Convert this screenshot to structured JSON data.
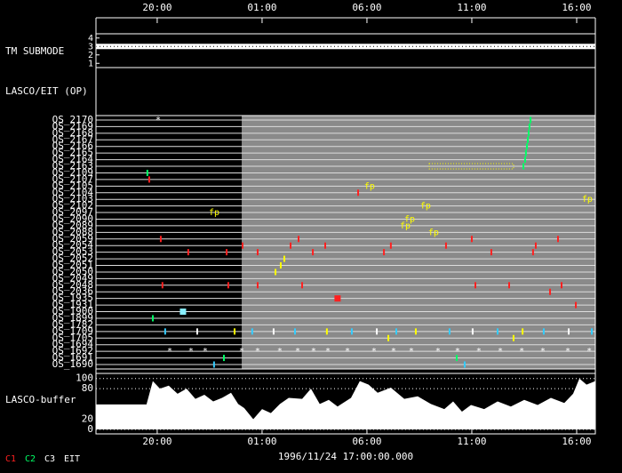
{
  "chart_data": {
    "type": "timeline",
    "date": "1996/11/24 17:00:00.000",
    "xlim": [
      17.08,
      40.89
    ],
    "xticks": [
      {
        "value": 20,
        "label": "20:00"
      },
      {
        "value": 25,
        "label": "01:00"
      },
      {
        "value": 30,
        "label": "06:00"
      },
      {
        "value": 35,
        "label": "11:00"
      },
      {
        "value": 40,
        "label": "16:00"
      }
    ],
    "shaded_from": 24.03,
    "tm": {
      "label": "TM SUBMODE",
      "ylim": [
        0.5,
        4.5
      ],
      "yticks": [
        4,
        3,
        2,
        1
      ],
      "value": 3
    },
    "plan_label": "LASCO/EIT (OP)",
    "rows": [
      {
        "label": "OS_2170",
        "events": [
          {
            "t": 19.92,
            "color": "#ffffff",
            "symbol": "*"
          },
          {
            "t": 37.8,
            "color": "#00ff66"
          }
        ]
      },
      {
        "label": "OS_2169",
        "events": [
          {
            "t": 37.75,
            "color": "#00ff66"
          }
        ]
      },
      {
        "label": "OS_2168",
        "events": [
          {
            "t": 37.71,
            "color": "#00ff66"
          }
        ]
      },
      {
        "label": "OS_2167",
        "events": [
          {
            "t": 37.67,
            "color": "#00ff66"
          }
        ]
      },
      {
        "label": "OS_2166",
        "events": [
          {
            "t": 37.63,
            "color": "#00ff66"
          }
        ]
      },
      {
        "label": "OS_2165",
        "events": [
          {
            "t": 37.58,
            "color": "#00ff66"
          }
        ]
      },
      {
        "label": "OS_2164",
        "events": [
          {
            "t": 37.54,
            "color": "#00ff66"
          }
        ]
      },
      {
        "label": "OS_2163",
        "events": [
          {
            "t": 37.46,
            "color": "#00ff66"
          }
        ],
        "ranges": [
          {
            "from": 32.97,
            "to": 36.99,
            "color": "#ffff00"
          }
        ]
      },
      {
        "label": "OS_2109",
        "events": [
          {
            "t": 19.53,
            "color": "#00ff66"
          }
        ]
      },
      {
        "label": "OS_2107",
        "events": [
          {
            "t": 19.62,
            "color": "#ff2020"
          }
        ]
      },
      {
        "label": "OS_2105",
        "events": [
          {
            "t": 29.87,
            "color": "#ffff00",
            "symbol": "fp"
          }
        ]
      },
      {
        "label": "OS_2104",
        "events": [
          {
            "t": 29.58,
            "color": "#ff2020"
          }
        ]
      },
      {
        "label": "OS_2103",
        "events": [
          {
            "t": 40.25,
            "color": "#ffff00",
            "symbol": "fp"
          }
        ]
      },
      {
        "label": "OS_2102",
        "events": [
          {
            "t": 32.54,
            "color": "#ffff00",
            "symbol": "fp"
          }
        ]
      },
      {
        "label": "OS_2097",
        "events": [
          {
            "t": 22.46,
            "color": "#ffff00",
            "symbol": "fp"
          }
        ]
      },
      {
        "label": "OS_2090",
        "events": [
          {
            "t": 31.78,
            "color": "#ffff00",
            "symbol": "fp"
          }
        ]
      },
      {
        "label": "OS_2089",
        "events": [
          {
            "t": 31.57,
            "color": "#ffff00",
            "symbol": "fp"
          }
        ]
      },
      {
        "label": "OS_2088",
        "events": [
          {
            "t": 32.92,
            "color": "#ffff00",
            "symbol": "fp"
          }
        ]
      },
      {
        "label": "OS_2059",
        "events": [
          {
            "t": 20.17,
            "color": "#ff2020"
          },
          {
            "t": 26.74,
            "color": "#ff2020"
          },
          {
            "t": 35.0,
            "color": "#ff2020"
          },
          {
            "t": 39.11,
            "color": "#ff2020"
          }
        ]
      },
      {
        "label": "OS_2054",
        "events": [
          {
            "t": 24.07,
            "color": "#ff2020"
          },
          {
            "t": 26.36,
            "color": "#ff2020"
          },
          {
            "t": 28.01,
            "color": "#ff2020"
          },
          {
            "t": 31.14,
            "color": "#ff2020"
          },
          {
            "t": 33.77,
            "color": "#ff2020"
          },
          {
            "t": 38.05,
            "color": "#ff2020"
          }
        ]
      },
      {
        "label": "OS_2053",
        "events": [
          {
            "t": 21.48,
            "color": "#ff2020"
          },
          {
            "t": 23.31,
            "color": "#ff2020"
          },
          {
            "t": 24.79,
            "color": "#ff2020"
          },
          {
            "t": 27.42,
            "color": "#ff2020"
          },
          {
            "t": 30.81,
            "color": "#ff2020"
          },
          {
            "t": 35.93,
            "color": "#ff2020"
          },
          {
            "t": 37.92,
            "color": "#ff2020"
          }
        ]
      },
      {
        "label": "OS_2052",
        "events": [
          {
            "t": 26.06,
            "color": "#ffff00"
          }
        ]
      },
      {
        "label": "OS_2051",
        "events": [
          {
            "t": 25.89,
            "color": "#ffff00"
          }
        ]
      },
      {
        "label": "OS_2050",
        "events": [
          {
            "t": 25.64,
            "color": "#ffff00"
          }
        ]
      },
      {
        "label": "OS_2049",
        "events": []
      },
      {
        "label": "OS_2048",
        "events": [
          {
            "t": 20.25,
            "color": "#ff2020"
          },
          {
            "t": 23.39,
            "color": "#ff2020"
          },
          {
            "t": 24.79,
            "color": "#ff2020"
          },
          {
            "t": 26.91,
            "color": "#ff2020"
          },
          {
            "t": 35.17,
            "color": "#ff2020"
          },
          {
            "t": 36.78,
            "color": "#ff2020"
          },
          {
            "t": 39.28,
            "color": "#ff2020"
          }
        ]
      },
      {
        "label": "OS_2036",
        "events": [
          {
            "t": 38.73,
            "color": "#ff2020"
          }
        ]
      },
      {
        "label": "OS_1935",
        "events": [
          {
            "t": 28.6,
            "color": "#ff2020",
            "shape": "square"
          }
        ]
      },
      {
        "label": "OS_1931",
        "events": [
          {
            "t": 39.96,
            "color": "#ff2020"
          }
        ]
      },
      {
        "label": "OS_1900",
        "events": [
          {
            "t": 21.23,
            "color": "#88eeff",
            "shape": "square"
          }
        ]
      },
      {
        "label": "OS_1899",
        "events": [
          {
            "t": 19.79,
            "color": "#00ff66"
          }
        ]
      },
      {
        "label": "OS_1782",
        "events": []
      },
      {
        "label": "OS_1709",
        "events": [
          {
            "t": 20.38,
            "color": "#33ccff"
          },
          {
            "t": 21.91,
            "color": "#ffffff"
          },
          {
            "t": 23.69,
            "color": "#ffff00"
          },
          {
            "t": 24.53,
            "color": "#33ccff"
          },
          {
            "t": 25.55,
            "color": "#ffffff"
          },
          {
            "t": 26.57,
            "color": "#33ccff"
          },
          {
            "t": 28.09,
            "color": "#ffff00"
          },
          {
            "t": 29.28,
            "color": "#33ccff"
          },
          {
            "t": 30.47,
            "color": "#ffffff"
          },
          {
            "t": 31.4,
            "color": "#33ccff"
          },
          {
            "t": 32.33,
            "color": "#ffff00"
          },
          {
            "t": 33.94,
            "color": "#33ccff"
          },
          {
            "t": 35.04,
            "color": "#ffffff"
          },
          {
            "t": 36.23,
            "color": "#33ccff"
          },
          {
            "t": 37.42,
            "color": "#ffff00"
          },
          {
            "t": 38.43,
            "color": "#33ccff"
          },
          {
            "t": 39.62,
            "color": "#ffffff"
          },
          {
            "t": 40.72,
            "color": "#33ccff"
          }
        ]
      },
      {
        "label": "OS_1705",
        "events": [
          {
            "t": 31.02,
            "color": "#ffff00"
          },
          {
            "t": 36.99,
            "color": "#ffff00"
          }
        ]
      },
      {
        "label": "OS_1694",
        "events": []
      },
      {
        "label": "OS_1692",
        "events": [
          {
            "t": 20.47,
            "color": "#ffffff",
            "symbol": "*"
          },
          {
            "t": 21.48,
            "color": "#ffffff",
            "symbol": "*"
          },
          {
            "t": 22.16,
            "color": "#ffffff",
            "symbol": "*"
          },
          {
            "t": 23.9,
            "color": "#ffffff",
            "symbol": "*"
          },
          {
            "t": 24.66,
            "color": "#ffffff",
            "symbol": "*"
          },
          {
            "t": 25.72,
            "color": "#ffffff",
            "symbol": "*"
          },
          {
            "t": 26.57,
            "color": "#ffffff",
            "symbol": "*"
          },
          {
            "t": 27.33,
            "color": "#ffffff",
            "symbol": "*"
          },
          {
            "t": 28.01,
            "color": "#ffffff",
            "symbol": "*"
          },
          {
            "t": 28.94,
            "color": "#ffffff",
            "symbol": "*"
          },
          {
            "t": 30.21,
            "color": "#ffffff",
            "symbol": "*"
          },
          {
            "t": 31.14,
            "color": "#ffffff",
            "symbol": "*"
          },
          {
            "t": 31.99,
            "color": "#ffffff",
            "symbol": "*"
          },
          {
            "t": 33.26,
            "color": "#ffffff",
            "symbol": "*"
          },
          {
            "t": 34.19,
            "color": "#ffffff",
            "symbol": "*"
          },
          {
            "t": 35.21,
            "color": "#ffffff",
            "symbol": "*"
          },
          {
            "t": 36.23,
            "color": "#ffffff",
            "symbol": "*"
          },
          {
            "t": 37.25,
            "color": "#ffffff",
            "symbol": "*"
          },
          {
            "t": 38.26,
            "color": "#ffffff",
            "symbol": "*"
          },
          {
            "t": 39.45,
            "color": "#ffffff",
            "symbol": "*"
          },
          {
            "t": 40.47,
            "color": "#ffffff",
            "symbol": "*"
          }
        ]
      },
      {
        "label": "OS_1691",
        "events": [
          {
            "t": 23.18,
            "color": "#00ff66"
          },
          {
            "t": 34.28,
            "color": "#00ff66"
          }
        ]
      },
      {
        "label": "OS_1690",
        "events": [
          {
            "t": 22.71,
            "color": "#33ccff"
          },
          {
            "t": 34.66,
            "color": "#33ccff"
          }
        ]
      }
    ],
    "buffer": {
      "label": "LASCO-buffer",
      "ylim": [
        0,
        110
      ],
      "yticks": [
        100,
        80,
        20,
        0
      ],
      "x": [
        17.08,
        18.86,
        19.49,
        19.79,
        20.13,
        20.55,
        20.97,
        21.4,
        21.82,
        22.25,
        22.67,
        23.09,
        23.52,
        23.86,
        24.15,
        24.58,
        25,
        25.42,
        25.85,
        26.27,
        26.91,
        27.33,
        27.75,
        28.18,
        28.6,
        29.24,
        29.66,
        30.08,
        30.51,
        31.14,
        31.78,
        32.42,
        33.05,
        33.69,
        34.11,
        34.53,
        34.96,
        35.59,
        36.23,
        36.86,
        37.5,
        38.14,
        38.77,
        39.41,
        39.83,
        40.13,
        40.47,
        40.89
      ],
      "values": [
        49,
        49,
        49,
        95,
        80,
        86,
        70,
        80,
        60,
        68,
        55,
        62,
        72,
        50,
        42,
        20,
        40,
        32,
        50,
        62,
        60,
        80,
        50,
        58,
        45,
        62,
        95,
        88,
        72,
        82,
        60,
        65,
        50,
        40,
        55,
        35,
        48,
        40,
        55,
        45,
        58,
        48,
        62,
        52,
        70,
        100,
        88,
        95
      ]
    },
    "legend": [
      {
        "name": "C1",
        "color": "#ff2020"
      },
      {
        "name": "C2",
        "color": "#00ff66"
      },
      {
        "name": "C3",
        "color": "#ffffff"
      },
      {
        "name": "EIT",
        "color": "#ffffff"
      }
    ]
  }
}
